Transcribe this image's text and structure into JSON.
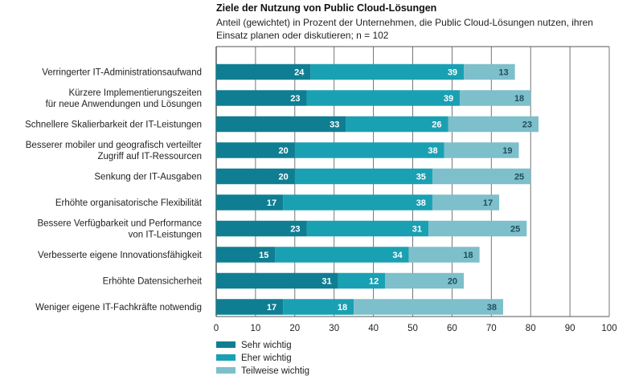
{
  "chart_data": {
    "type": "bar",
    "orientation": "horizontal",
    "stacked": true,
    "title": "Ziele der Nutzung von Public Cloud-Lösungen",
    "subtitle": [
      "Anteil (gewichtet) in Prozent der Unternehmen, die Public Cloud-Lösungen nutzen, ihren",
      "Einsatz planen oder diskutieren; n = 102"
    ],
    "categories": [
      [
        "Verringerter IT-Administrationsaufwand"
      ],
      [
        "Kürzere Implementierungszeiten",
        "für neue Anwendungen und Lösungen"
      ],
      [
        "Schnellere Skalierbarkeit der IT-Leistungen"
      ],
      [
        "Besserer mobiler und geografisch verteilter",
        "Zugriff auf IT-Ressourcen"
      ],
      [
        "Senkung der IT-Ausgaben"
      ],
      [
        "Erhöhte organisatorische Flexibilität"
      ],
      [
        "Bessere Verfügbarkeit und Performance",
        "von IT-Leistungen"
      ],
      [
        "Verbesserte eigene Innovationsfähigkeit"
      ],
      [
        "Erhöhte Datensicherheit"
      ],
      [
        "Weniger eigene IT-Fachkräfte notwendig"
      ]
    ],
    "series": [
      {
        "name": "Sehr wichtig",
        "color": "#0f7e92",
        "label_color": "#ffffff",
        "values": [
          24,
          23,
          33,
          20,
          20,
          17,
          23,
          15,
          31,
          17
        ]
      },
      {
        "name": "Eher wichtig",
        "color": "#1aa0b3",
        "label_color": "#ffffff",
        "values": [
          39,
          39,
          26,
          38,
          35,
          38,
          31,
          34,
          12,
          18
        ]
      },
      {
        "name": "Teilweise wichtig",
        "color": "#7dbfcb",
        "label_color": "#1f4f5a",
        "values": [
          13,
          18,
          23,
          19,
          25,
          17,
          25,
          18,
          20,
          38
        ]
      }
    ],
    "xlim": [
      0,
      100
    ],
    "xticks": [
      0,
      10,
      20,
      30,
      40,
      50,
      60,
      70,
      80,
      90,
      100
    ],
    "grid": true,
    "legend": "bottom-left"
  }
}
